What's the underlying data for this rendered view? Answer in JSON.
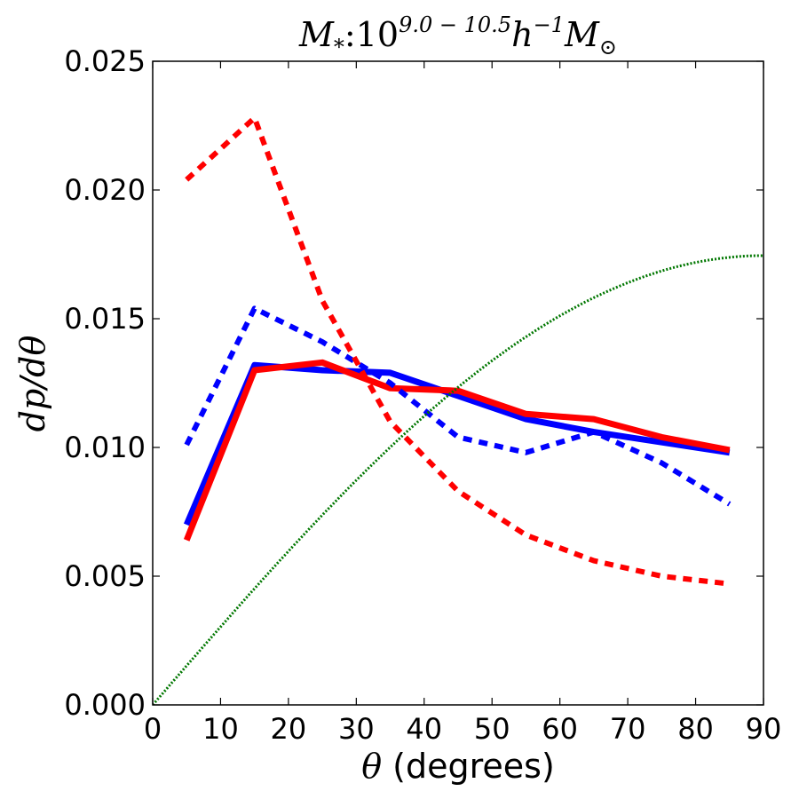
{
  "chart_data": {
    "type": "line",
    "title": {
      "m_symbol": "M",
      "m_subscript": "*",
      "colon": ":",
      "base": "10",
      "exponent": "9.0 − 10.5",
      "h": "h",
      "h_exponent": "−1",
      "m_sun": "M",
      "sun_subscript": "⊙"
    },
    "xlabel": {
      "symbol": "θ",
      "text": " (degrees)"
    },
    "ylabel": "dp/dθ",
    "xlim": [
      0,
      90
    ],
    "ylim": [
      0,
      0.025
    ],
    "xticks": [
      0,
      10,
      20,
      30,
      40,
      50,
      60,
      70,
      80,
      90
    ],
    "xtick_labels": [
      "0",
      "10",
      "20",
      "30",
      "40",
      "50",
      "60",
      "70",
      "80",
      "90"
    ],
    "yticks": [
      0,
      0.005,
      0.01,
      0.015,
      0.02,
      0.025
    ],
    "ytick_labels": [
      "0.000",
      "0.005",
      "0.010",
      "0.015",
      "0.020",
      "0.025"
    ],
    "grid": false,
    "series": [
      {
        "name": "blue-solid",
        "color": "#0000ff",
        "style": "solid",
        "x": [
          5,
          15,
          25,
          35,
          45,
          55,
          65,
          75,
          85
        ],
        "y": [
          0.007,
          0.0132,
          0.013,
          0.0129,
          0.012,
          0.0111,
          0.0106,
          0.0102,
          0.0098
        ]
      },
      {
        "name": "red-solid",
        "color": "#ff0000",
        "style": "solid",
        "x": [
          5,
          15,
          25,
          35,
          45,
          55,
          65,
          75,
          85
        ],
        "y": [
          0.0064,
          0.013,
          0.0133,
          0.0123,
          0.0122,
          0.0113,
          0.0111,
          0.0104,
          0.0099
        ]
      },
      {
        "name": "blue-dashed",
        "color": "#0000ff",
        "style": "dashed",
        "x": [
          5,
          15,
          25,
          35,
          45,
          55,
          65,
          75,
          85
        ],
        "y": [
          0.0101,
          0.0154,
          0.0141,
          0.0125,
          0.0104,
          0.0098,
          0.0106,
          0.0094,
          0.0078
        ]
      },
      {
        "name": "red-dashed",
        "color": "#ff0000",
        "style": "dashed",
        "x": [
          5,
          15,
          25,
          35,
          45,
          55,
          65,
          75,
          85
        ],
        "y": [
          0.0204,
          0.0228,
          0.0157,
          0.011,
          0.0083,
          0.0066,
          0.0056,
          0.005,
          0.0047
        ]
      },
      {
        "name": "green-dotted-sine",
        "color": "#007700",
        "style": "dotted",
        "function": "sin",
        "amplitude": 0.01745,
        "x_range": [
          0,
          90
        ]
      }
    ]
  }
}
